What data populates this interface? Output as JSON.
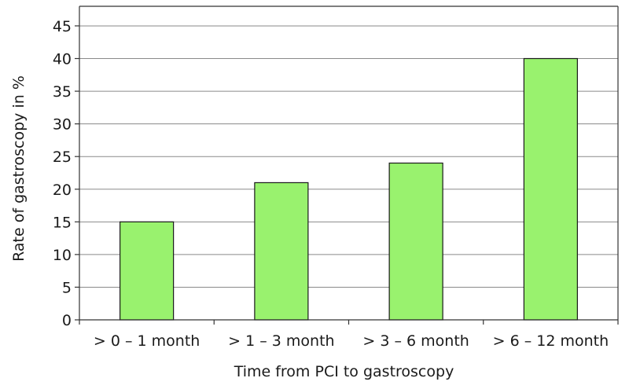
{
  "chart_data": {
    "type": "bar",
    "title": "",
    "xlabel": "Time from PCI to gastroscopy",
    "ylabel": "Rate of gastroscopy in %",
    "categories": [
      "> 0 – 1 month",
      "> 1 – 3 month",
      "> 3 – 6 month",
      "> 6 – 12 month"
    ],
    "values": [
      15,
      21,
      24,
      40
    ],
    "ylim": [
      0,
      48
    ],
    "yticks": [
      0,
      5,
      10,
      15,
      20,
      25,
      30,
      35,
      40,
      45
    ],
    "grid": true,
    "legend": "none",
    "colors": {
      "bar_fill": "#99f26e",
      "bar_stroke": "#1a1a1a",
      "grid": "#8a8a8a",
      "axis": "#333333"
    }
  }
}
